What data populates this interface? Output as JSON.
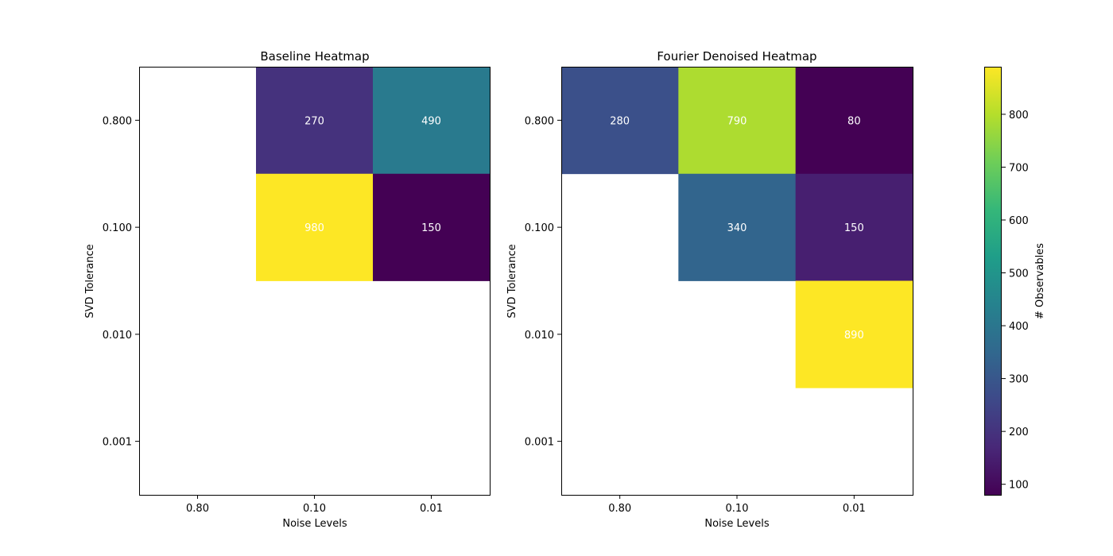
{
  "chart_data": [
    {
      "type": "heatmap",
      "title": "Baseline Heatmap",
      "xlabel": "Noise Levels",
      "ylabel": "SVD Tolerance",
      "x_categories": [
        "0.80",
        "0.10",
        "0.01"
      ],
      "y_categories": [
        "0.800",
        "0.100",
        "0.010",
        "0.001"
      ],
      "values": [
        [
          null,
          270,
          490
        ],
        [
          null,
          980,
          150
        ],
        [
          null,
          null,
          null
        ],
        [
          null,
          null,
          null
        ]
      ],
      "value_labels": [
        [
          "",
          "270",
          "490"
        ],
        [
          "",
          "980",
          "150"
        ],
        [
          "",
          "",
          ""
        ],
        [
          "",
          "",
          ""
        ]
      ],
      "colormap": "viridis",
      "color_range": [
        150,
        980
      ]
    },
    {
      "type": "heatmap",
      "title": "Fourier Denoised Heatmap",
      "xlabel": "Noise Levels",
      "ylabel": "SVD Tolerance",
      "x_categories": [
        "0.80",
        "0.10",
        "0.01"
      ],
      "y_categories": [
        "0.800",
        "0.100",
        "0.010",
        "0.001"
      ],
      "values": [
        [
          280,
          790,
          80
        ],
        [
          null,
          340,
          150
        ],
        [
          null,
          null,
          890
        ],
        [
          null,
          null,
          null
        ]
      ],
      "value_labels": [
        [
          "280",
          "790",
          "80"
        ],
        [
          "",
          "340",
          "150"
        ],
        [
          "",
          "",
          "890"
        ],
        [
          "",
          "",
          ""
        ]
      ],
      "colormap": "viridis",
      "color_range": [
        80,
        890
      ]
    }
  ],
  "colorbar": {
    "label": "# Observables",
    "range": [
      80,
      890
    ],
    "ticks": [
      100,
      200,
      300,
      400,
      500,
      600,
      700,
      800
    ],
    "tick_labels": [
      "100",
      "200",
      "300",
      "400",
      "500",
      "600",
      "700",
      "800"
    ],
    "colormap": "viridis"
  }
}
